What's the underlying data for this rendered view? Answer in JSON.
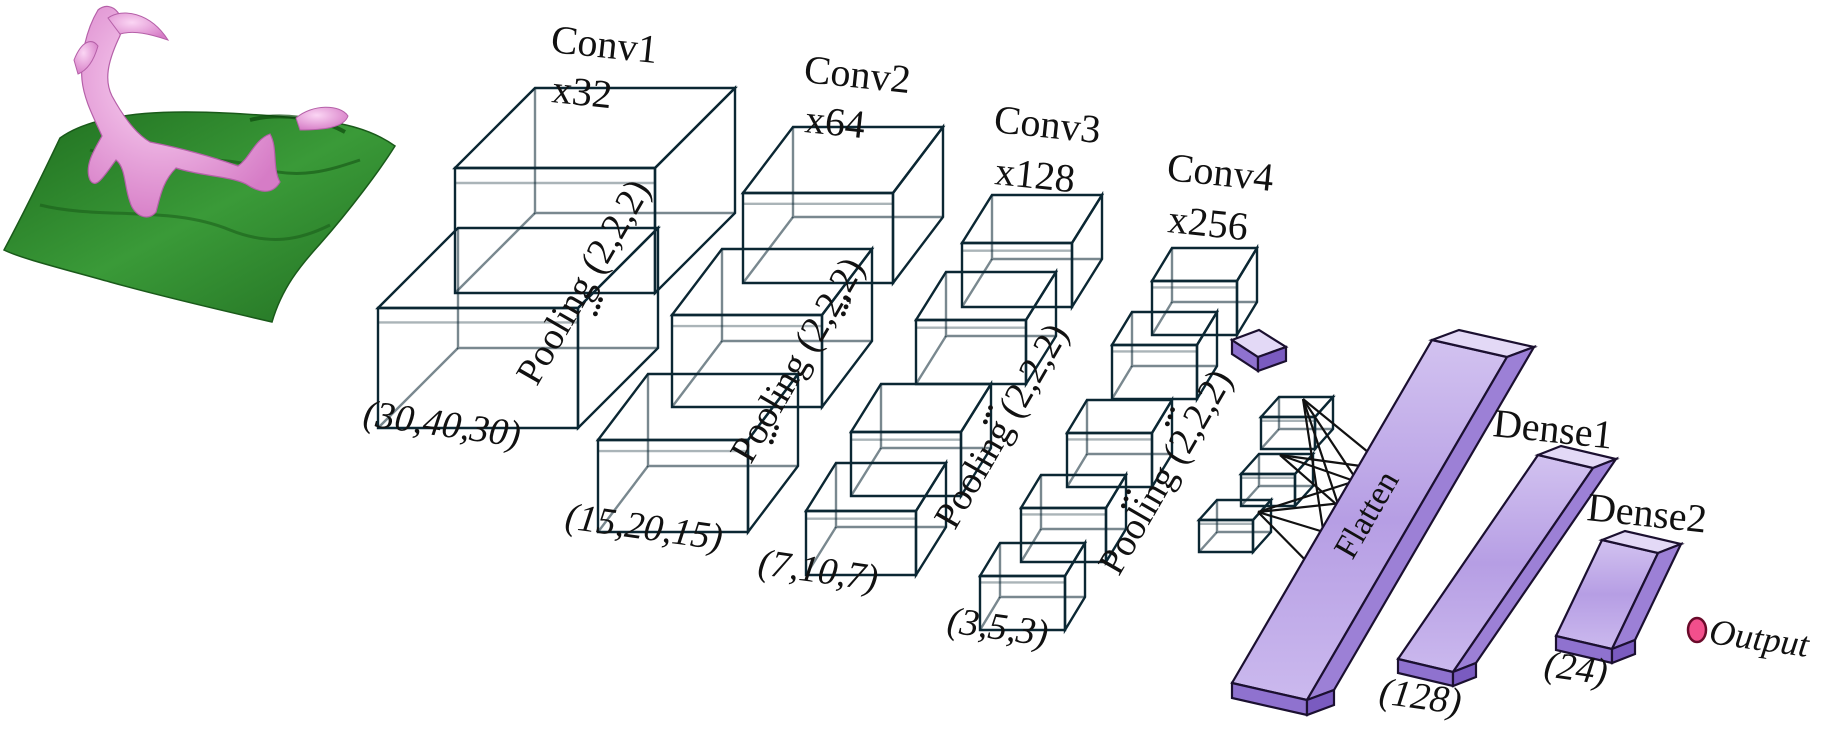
{
  "input_image": {
    "name": "terrain-surface-with-pink-isosurface"
  },
  "layers": {
    "conv1": {
      "title": "Conv1",
      "filters": "x32",
      "shape": "(30,40,30)"
    },
    "conv2": {
      "title": "Conv2",
      "filters": "x64",
      "shape": "(15,20,15)"
    },
    "conv3": {
      "title": "Conv3",
      "filters": "x128",
      "shape": "(7,10,7)"
    },
    "conv4": {
      "title": "Conv4",
      "filters": "x256",
      "shape": "(3,5,3)"
    },
    "flatten": {
      "title": "Flatten"
    },
    "dense1": {
      "title": "Dense1",
      "units": "(128)"
    },
    "dense2": {
      "title": "Dense2",
      "units": "(24)"
    },
    "output": {
      "title": "Output"
    }
  },
  "pooling": {
    "label": "Pooling (2,2,2)"
  },
  "ellipsis": "...",
  "colors": {
    "conv_top": "#6fd0e6",
    "conv_front": "#38b7d6",
    "conv_side": "#2aa4c6",
    "dense_front": "#c6b4ea",
    "dense_top": "#e3d9f6",
    "dense_side": "#9c80d6",
    "output_node": "#f24f8c",
    "terrain": "#2f8a2f",
    "blob": "#f0a6e4"
  }
}
